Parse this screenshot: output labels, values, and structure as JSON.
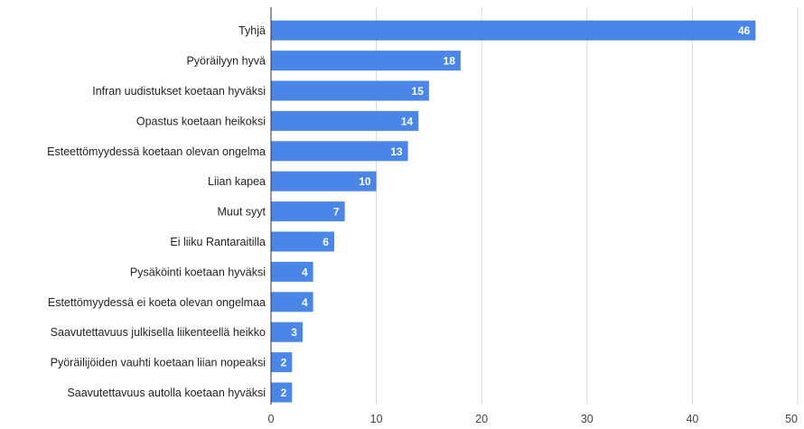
{
  "chart_data": {
    "type": "bar",
    "orientation": "horizontal",
    "title": "",
    "xlabel": "",
    "ylabel": "",
    "xlim": [
      0,
      50
    ],
    "ticks": [
      0,
      10,
      20,
      30,
      40,
      50
    ],
    "grid": true,
    "bar_color": "#4a86e8",
    "categories": [
      "Tyhjä",
      "Pyöräilyyn hyvä",
      "Infran uudistukset koetaan hyväksi",
      "Opastus koetaan heikoksi",
      "Esteettömyydessä koetaan olevan ongelma",
      "Liian kapea",
      "Muut syyt",
      "Ei liiku Rantaraitilla",
      "Pysäköinti koetaan hyväksi",
      "Estettömyydessä ei koeta olevan ongelmaa",
      "Saavutettavuus julkisella liikenteellä heikko",
      "Pyöräilijöiden vauhti koetaan liian nopeaksi",
      "Saavutettavuus autolla koetaan hyväksi"
    ],
    "values": [
      46,
      18,
      15,
      14,
      13,
      10,
      7,
      6,
      4,
      4,
      3,
      2,
      2
    ]
  }
}
